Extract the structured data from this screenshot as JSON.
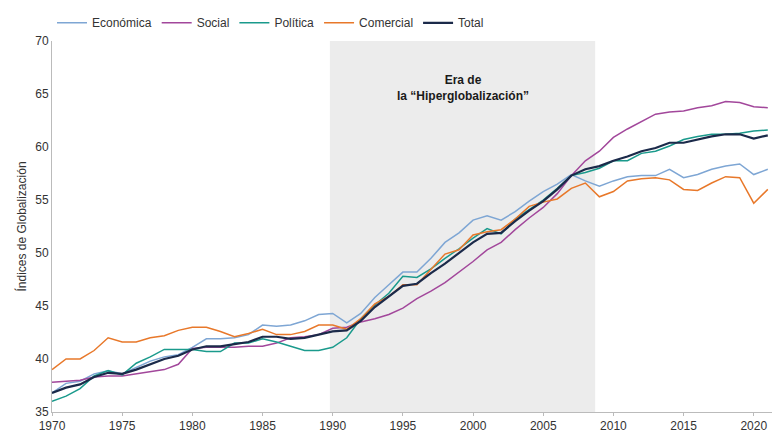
{
  "chart_data": {
    "type": "line",
    "y_label": "Índices de Globalización",
    "x": [
      1970,
      1971,
      1972,
      1973,
      1974,
      1975,
      1976,
      1977,
      1978,
      1979,
      1980,
      1981,
      1982,
      1983,
      1984,
      1985,
      1986,
      1987,
      1988,
      1989,
      1990,
      1991,
      1992,
      1993,
      1994,
      1995,
      1996,
      1997,
      1998,
      1999,
      2000,
      2001,
      2002,
      2003,
      2004,
      2005,
      2006,
      2007,
      2008,
      2009,
      2010,
      2011,
      2012,
      2013,
      2014,
      2015,
      2016,
      2017,
      2018,
      2019,
      2020,
      2021
    ],
    "series": [
      {
        "name": "Económica",
        "color": "#7ea6d4",
        "values": [
          36.8,
          37.7,
          37.9,
          38.6,
          38.9,
          38.6,
          39.2,
          39.8,
          40.2,
          40.4,
          41.1,
          41.9,
          41.9,
          42.0,
          42.3,
          43.2,
          43.1,
          43.2,
          43.6,
          44.2,
          44.3,
          43.4,
          44.3,
          45.8,
          47.0,
          48.2,
          48.2,
          49.5,
          51.0,
          51.9,
          53.1,
          53.5,
          53.1,
          53.9,
          54.9,
          55.8,
          56.5,
          57.4,
          56.8,
          56.3,
          56.8,
          57.2,
          57.3,
          57.3,
          57.9,
          57.1,
          57.4,
          57.9,
          58.2,
          58.4,
          57.4,
          57.9
        ]
      },
      {
        "name": "Social",
        "color": "#a2479b",
        "values": [
          37.8,
          37.9,
          38.0,
          38.3,
          38.4,
          38.4,
          38.6,
          38.8,
          39.0,
          39.5,
          41.0,
          41.1,
          41.1,
          41.1,
          41.2,
          41.2,
          41.5,
          42.0,
          42.1,
          42.3,
          42.9,
          43.0,
          43.5,
          43.8,
          44.2,
          44.8,
          45.7,
          46.4,
          47.2,
          48.2,
          49.2,
          50.3,
          51.0,
          52.2,
          53.3,
          54.3,
          55.6,
          57.3,
          58.7,
          59.6,
          60.9,
          61.7,
          62.4,
          63.1,
          63.3,
          63.4,
          63.7,
          63.9,
          64.3,
          64.2,
          63.8,
          63.7
        ]
      },
      {
        "name": "Política",
        "color": "#1a9a8c",
        "values": [
          36.0,
          36.5,
          37.2,
          38.4,
          38.9,
          38.5,
          39.6,
          40.2,
          40.9,
          40.9,
          40.9,
          40.7,
          40.7,
          41.5,
          41.5,
          41.9,
          41.6,
          41.2,
          40.8,
          40.8,
          41.1,
          42.0,
          43.8,
          45.1,
          46.2,
          47.8,
          47.7,
          48.5,
          49.5,
          50.4,
          51.4,
          52.3,
          51.8,
          53.2,
          54.1,
          55.0,
          56.1,
          57.3,
          57.6,
          58.0,
          58.7,
          58.7,
          59.4,
          59.6,
          60.1,
          60.7,
          61.0,
          61.2,
          61.2,
          61.3,
          61.5,
          61.6
        ]
      },
      {
        "name": "Comercial",
        "color": "#e8782a",
        "values": [
          39.0,
          40.0,
          40.0,
          40.8,
          42.0,
          41.6,
          41.6,
          42.0,
          42.2,
          42.7,
          43.0,
          43.0,
          42.6,
          42.1,
          42.4,
          42.8,
          42.3,
          42.3,
          42.6,
          43.2,
          43.2,
          42.8,
          43.8,
          45.2,
          45.9,
          47.0,
          47.0,
          48.4,
          49.9,
          50.3,
          51.7,
          52.0,
          52.2,
          53.2,
          54.4,
          54.8,
          55.1,
          56.1,
          56.6,
          55.3,
          55.8,
          56.8,
          57.0,
          57.1,
          56.9,
          56.0,
          55.9,
          56.6,
          57.2,
          57.1,
          54.7,
          56.0
        ]
      },
      {
        "name": "Total",
        "color": "#1b2a4a",
        "values": [
          36.8,
          37.3,
          37.6,
          38.3,
          38.7,
          38.6,
          39.0,
          39.5,
          40.0,
          40.3,
          40.9,
          41.2,
          41.2,
          41.4,
          41.6,
          42.1,
          42.1,
          41.9,
          42.0,
          42.3,
          42.6,
          42.7,
          43.6,
          44.9,
          45.9,
          46.9,
          47.1,
          48.1,
          49.0,
          50.0,
          51.0,
          51.8,
          51.9,
          53.0,
          54.0,
          54.9,
          56.0,
          57.3,
          57.9,
          58.2,
          58.7,
          59.1,
          59.6,
          59.9,
          60.4,
          60.4,
          60.7,
          61.0,
          61.2,
          61.2,
          60.8,
          61.1
        ]
      }
    ],
    "highlight": {
      "x": [
        1989.8,
        2008.7
      ],
      "label": [
        "Era de",
        "la “Hiperglobalización”"
      ]
    },
    "xlim": [
      1970,
      2021.3
    ],
    "xticks": [
      1970,
      1975,
      1980,
      1985,
      1990,
      1995,
      2000,
      2005,
      2010,
      2015,
      2020
    ],
    "ylim": [
      35,
      70
    ],
    "yticks": [
      35,
      40,
      45,
      50,
      55,
      60,
      65,
      70
    ],
    "grid": false,
    "legend": "top left"
  }
}
